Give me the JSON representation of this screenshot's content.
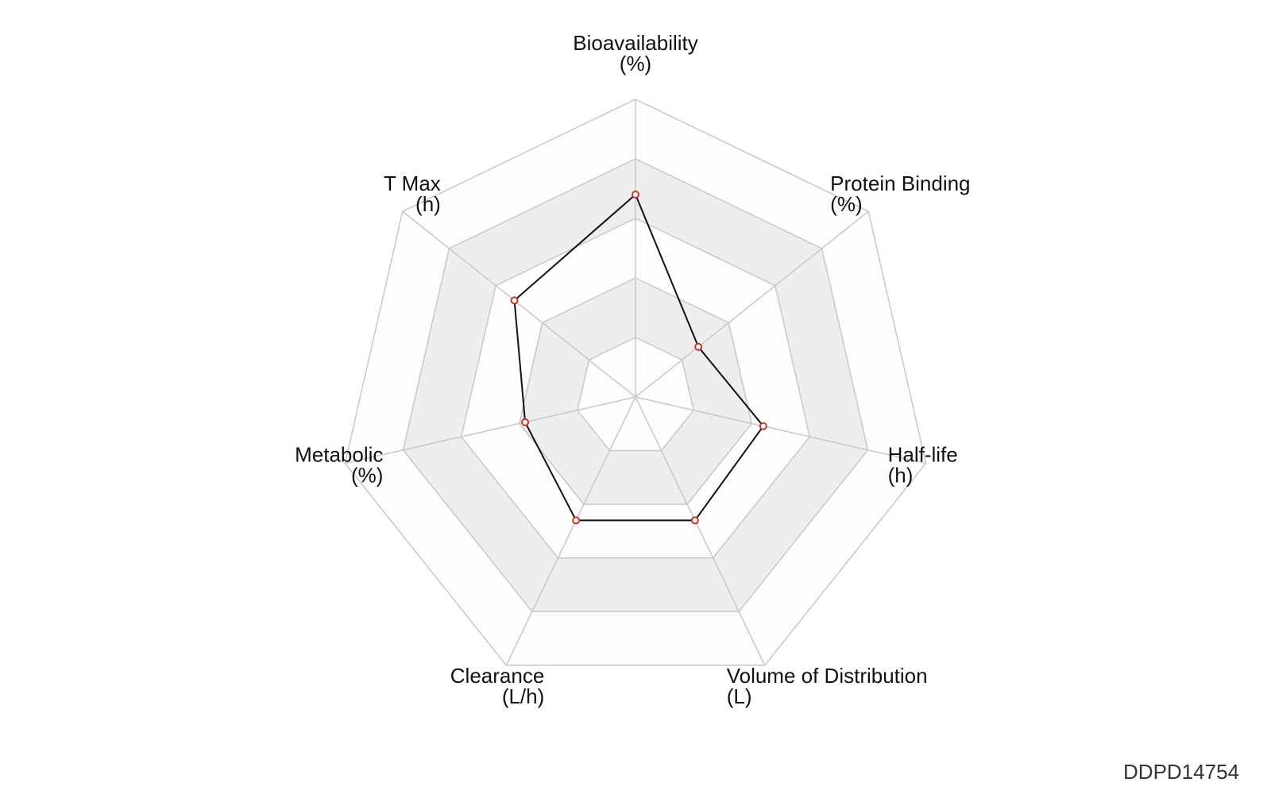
{
  "chart_data": {
    "type": "radar",
    "axes": [
      {
        "name": "Bioavailability",
        "unit": "(%)"
      },
      {
        "name": "Protein Binding",
        "unit": "(%)"
      },
      {
        "name": "Half-life",
        "unit": "(h)"
      },
      {
        "name": "Volume of Distribution",
        "unit": "(L)"
      },
      {
        "name": "Clearance",
        "unit": "(L/h)"
      },
      {
        "name": "Metabolic",
        "unit": "(%)"
      },
      {
        "name": "T Max",
        "unit": "(h)"
      }
    ],
    "range": [
      0,
      1
    ],
    "ring_count": 5,
    "grid": true,
    "series": [
      {
        "values": [
          0.68,
          0.27,
          0.44,
          0.46,
          0.46,
          0.38,
          0.52
        ]
      }
    ],
    "colors": {
      "line": "#111111",
      "marker_edge": "#c0392b",
      "band": "#eeeeee",
      "band_light": "#fdfdfd",
      "grid": "#c8c8c8"
    }
  },
  "watermark": "DDPD14754"
}
